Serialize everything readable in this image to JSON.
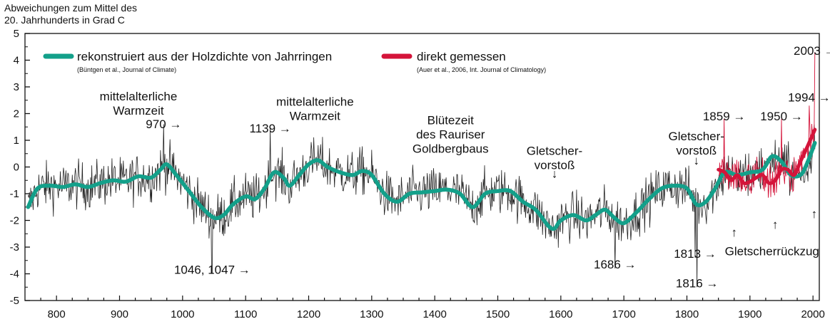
{
  "chart_data": {
    "type": "line",
    "ylabel": [
      "Abweichungen zum Mittel des",
      "20. Jahrhunderts in Grad C"
    ],
    "xlim": [
      750,
      2010
    ],
    "ylim": [
      -5,
      5
    ],
    "xticks": [
      800,
      900,
      1000,
      1100,
      1200,
      1300,
      1400,
      1500,
      1600,
      1700,
      1800,
      1900,
      2000
    ],
    "yticks": [
      -5,
      -4,
      -3,
      -2,
      -1,
      0,
      1,
      2,
      3,
      4,
      5
    ],
    "grid": false,
    "legend": [
      {
        "label": "rekonstruiert aus der Holzdichte von Jahrringen",
        "source": "(Büntgen et al., Journal of Climate)",
        "color": "#13a08a"
      },
      {
        "label": "direkt gemessen",
        "source": "(Auer et al., 2006, Int. Journal of Climatology)",
        "color": "#d4143a"
      }
    ],
    "series": [
      {
        "name": "rekonstruiert aus der Holzdichte von Jahrringen",
        "color": "#13a08a",
        "smoothed": {
          "x": [
            755,
            770,
            790,
            810,
            830,
            850,
            870,
            890,
            910,
            930,
            950,
            965,
            975,
            990,
            1010,
            1030,
            1050,
            1065,
            1080,
            1100,
            1115,
            1130,
            1145,
            1160,
            1170,
            1185,
            1200,
            1215,
            1230,
            1250,
            1270,
            1285,
            1300,
            1320,
            1340,
            1360,
            1380,
            1400,
            1420,
            1440,
            1460,
            1480,
            1500,
            1520,
            1540,
            1560,
            1580,
            1590,
            1600,
            1620,
            1640,
            1655,
            1670,
            1685,
            1700,
            1720,
            1740,
            1760,
            1780,
            1800,
            1815,
            1830,
            1845,
            1860,
            1880,
            1900,
            1920,
            1935,
            1950,
            1965,
            1980,
            1990,
            2003
          ],
          "y": [
            -1.5,
            -0.8,
            -0.7,
            -0.75,
            -0.65,
            -0.75,
            -0.6,
            -0.5,
            -0.55,
            -0.35,
            -0.4,
            -0.1,
            0.1,
            -0.3,
            -0.9,
            -1.5,
            -1.9,
            -1.8,
            -1.4,
            -1.1,
            -1.2,
            -0.8,
            -0.2,
            -0.4,
            -0.7,
            -0.3,
            0.1,
            0.25,
            0.0,
            -0.2,
            -0.3,
            -0.15,
            -0.3,
            -1.0,
            -1.3,
            -1.0,
            -0.95,
            -0.9,
            -0.85,
            -1.0,
            -1.5,
            -1.0,
            -0.9,
            -0.9,
            -1.3,
            -1.6,
            -2.2,
            -2.3,
            -2.0,
            -1.8,
            -2.0,
            -1.8,
            -1.6,
            -1.9,
            -2.1,
            -1.7,
            -1.2,
            -0.8,
            -0.7,
            -0.8,
            -1.4,
            -1.3,
            -0.8,
            -0.2,
            -0.3,
            -0.2,
            -0.1,
            0.4,
            0.2,
            -0.3,
            -0.3,
            0.1,
            0.9
          ]
        }
      },
      {
        "name": "direkt gemessen",
        "color": "#d4143a",
        "smoothed": {
          "x": [
            1850,
            1860,
            1870,
            1880,
            1890,
            1900,
            1910,
            1920,
            1930,
            1940,
            1950,
            1960,
            1970,
            1980,
            1990,
            2003
          ],
          "y": [
            -0.1,
            -0.2,
            -0.5,
            -0.3,
            -0.6,
            -0.55,
            -0.4,
            -0.3,
            -0.6,
            -0.5,
            -0.1,
            -0.1,
            -0.3,
            0.2,
            0.7,
            1.4
          ]
        },
        "peaks": {
          "x": [
            1859,
            1950,
            1994,
            2003
          ],
          "y": [
            1.8,
            1.8,
            2.3,
            4.3
          ]
        }
      }
    ],
    "annotations": [
      {
        "lines": [
          "mittelalterliche",
          "Warmzeit"
        ],
        "x": 930,
        "y": 2.5
      },
      {
        "lines": [
          "970 →"
        ],
        "x": 970,
        "y": 1.45
      },
      {
        "lines": [
          "1046, 1047 →"
        ],
        "x": 1047,
        "y": -4.0
      },
      {
        "lines": [
          "1139 →"
        ],
        "x": 1139,
        "y": 1.3
      },
      {
        "lines": [
          "mittelalterliche",
          "Warmzeit"
        ],
        "x": 1210,
        "y": 2.3
      },
      {
        "lines": [
          "Blütezeit",
          "des Rauriser",
          "Goldbergbaus"
        ],
        "x": 1425,
        "y": 1.6
      },
      {
        "lines": [
          "Gletscher-",
          "vorstoß"
        ],
        "x": 1590,
        "y": 0.45
      },
      {
        "lines": [
          "↓"
        ],
        "x": 1590,
        "y": -0.4
      },
      {
        "lines": [
          "1686 →"
        ],
        "x": 1686,
        "y": -3.8
      },
      {
        "lines": [
          "Gletscher-",
          "vorstoß"
        ],
        "x": 1815,
        "y": 1.0
      },
      {
        "lines": [
          "↓"
        ],
        "x": 1815,
        "y": 0.1
      },
      {
        "lines": [
          "1859 →"
        ],
        "x": 1859,
        "y": 1.75
      },
      {
        "lines": [
          "1813 →"
        ],
        "x": 1813,
        "y": -3.4
      },
      {
        "lines": [
          "1816 →"
        ],
        "x": 1816,
        "y": -4.5
      },
      {
        "lines": [
          "1950 →"
        ],
        "x": 1950,
        "y": 1.75
      },
      {
        "lines": [
          "1994 →"
        ],
        "x": 1994,
        "y": 2.45
      },
      {
        "lines": [
          "2003 →"
        ],
        "x": 2003,
        "y": 4.2
      },
      {
        "lines": [
          "Gletscherrückzug"
        ],
        "x": 1935,
        "y": -3.3
      },
      {
        "lines": [
          "↑"
        ],
        "x": 1875,
        "y": -2.6
      },
      {
        "lines": [
          "↑"
        ],
        "x": 1940,
        "y": -2.3
      },
      {
        "lines": [
          "↑"
        ],
        "x": 2002,
        "y": -1.9
      }
    ]
  }
}
